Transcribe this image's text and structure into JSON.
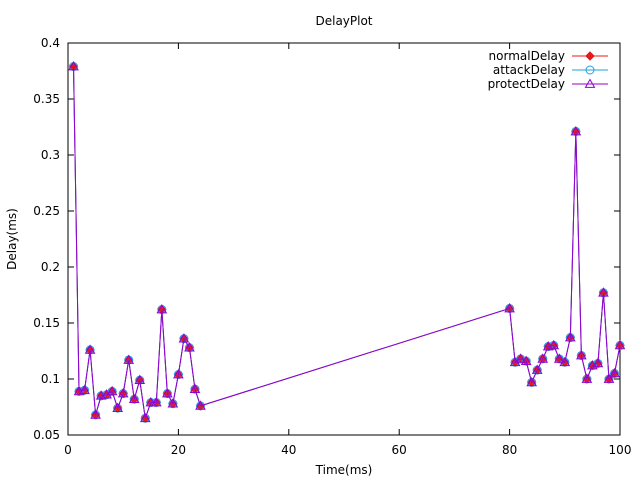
{
  "chart_data": {
    "type": "line",
    "title": "DelayPlot",
    "xlabel": "Time(ms)",
    "ylabel": "Delay(ms)",
    "xlim": [
      0,
      100
    ],
    "ylim": [
      0.05,
      0.4
    ],
    "xticks": [
      "0",
      "20",
      "40",
      "60",
      "80",
      "100"
    ],
    "yticks": [
      "0.05",
      "0.1",
      "0.15",
      "0.2",
      "0.25",
      "0.3",
      "0.35",
      "0.4"
    ],
    "grid": false,
    "legend_position": "top-right",
    "x": [
      1,
      2,
      3,
      4,
      5,
      6,
      7,
      8,
      9,
      10,
      11,
      12,
      13,
      14,
      15,
      16,
      17,
      18,
      19,
      20,
      21,
      22,
      23,
      24,
      80,
      81,
      82,
      83,
      84,
      85,
      86,
      87,
      88,
      89,
      90,
      91,
      92,
      93,
      94,
      95,
      96,
      97,
      98,
      99,
      100
    ],
    "series": [
      {
        "name": "normalDelay",
        "color": "#e41a1c",
        "marker": "diamond",
        "values": [
          0.379,
          0.089,
          0.09,
          0.126,
          0.068,
          0.085,
          0.086,
          0.089,
          0.074,
          0.087,
          0.117,
          0.082,
          0.099,
          0.065,
          0.079,
          0.079,
          0.162,
          0.087,
          0.078,
          0.104,
          0.136,
          0.128,
          0.091,
          0.076,
          0.163,
          0.115,
          0.118,
          0.116,
          0.097,
          0.108,
          0.118,
          0.129,
          0.13,
          0.118,
          0.115,
          0.137,
          0.321,
          0.121,
          0.1,
          0.112,
          0.114,
          0.177,
          0.1,
          0.105,
          0.13
        ]
      },
      {
        "name": "attackDelay",
        "color": "#1f9fdf",
        "marker": "circle",
        "values": [
          0.379,
          0.089,
          0.09,
          0.126,
          0.068,
          0.085,
          0.086,
          0.089,
          0.074,
          0.087,
          0.117,
          0.082,
          0.099,
          0.065,
          0.079,
          0.079,
          0.162,
          0.087,
          0.078,
          0.104,
          0.136,
          0.128,
          0.091,
          0.076,
          0.163,
          0.115,
          0.118,
          0.116,
          0.097,
          0.108,
          0.118,
          0.129,
          0.13,
          0.118,
          0.115,
          0.137,
          0.321,
          0.121,
          0.1,
          0.112,
          0.114,
          0.177,
          0.1,
          0.105,
          0.13
        ]
      },
      {
        "name": "protectDelay",
        "color": "#9400d3",
        "marker": "triangle",
        "values": [
          0.379,
          0.089,
          0.09,
          0.126,
          0.068,
          0.085,
          0.086,
          0.089,
          0.074,
          0.087,
          0.117,
          0.082,
          0.099,
          0.065,
          0.079,
          0.079,
          0.162,
          0.087,
          0.078,
          0.104,
          0.136,
          0.128,
          0.091,
          0.076,
          0.163,
          0.115,
          0.118,
          0.116,
          0.097,
          0.108,
          0.118,
          0.129,
          0.13,
          0.118,
          0.115,
          0.137,
          0.321,
          0.121,
          0.1,
          0.112,
          0.114,
          0.177,
          0.1,
          0.105,
          0.13
        ]
      }
    ]
  }
}
